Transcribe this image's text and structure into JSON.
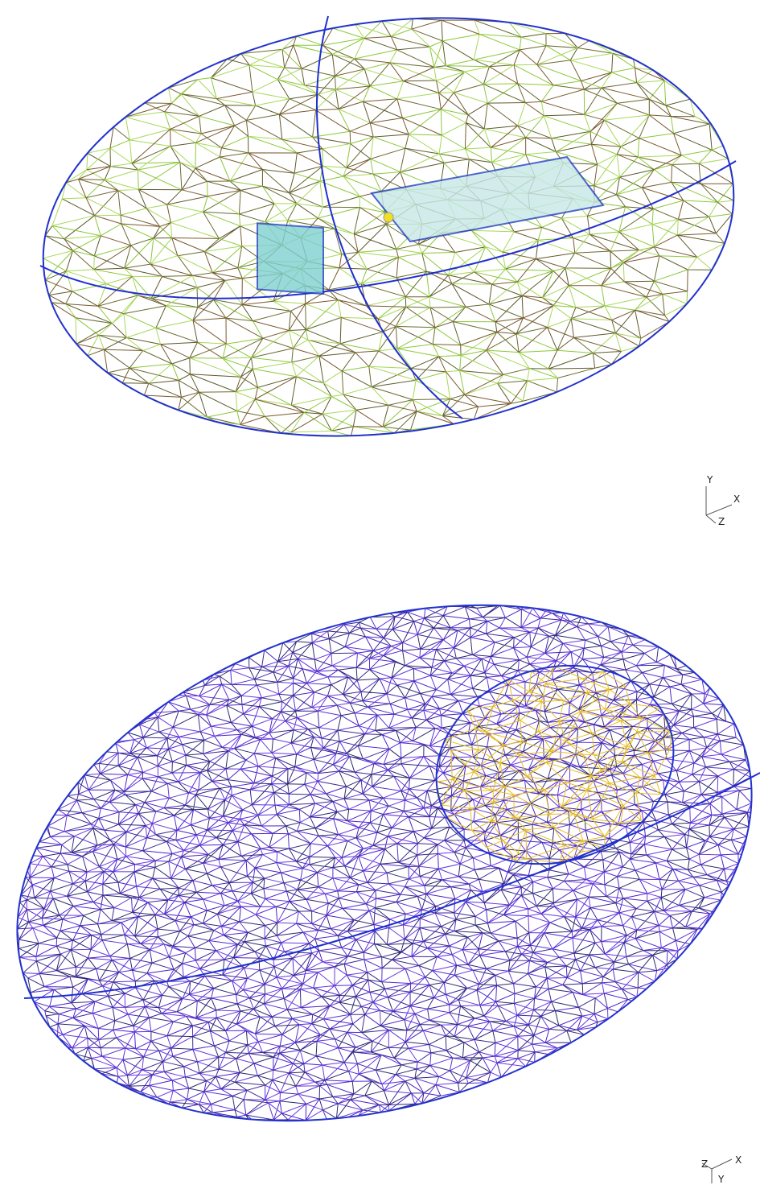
{
  "views": [
    {
      "triad": {
        "up": "Y",
        "right": "X",
        "depth": "Z"
      }
    },
    {
      "triad": {
        "up": "Z",
        "right": "X",
        "down": "Y"
      }
    }
  ]
}
